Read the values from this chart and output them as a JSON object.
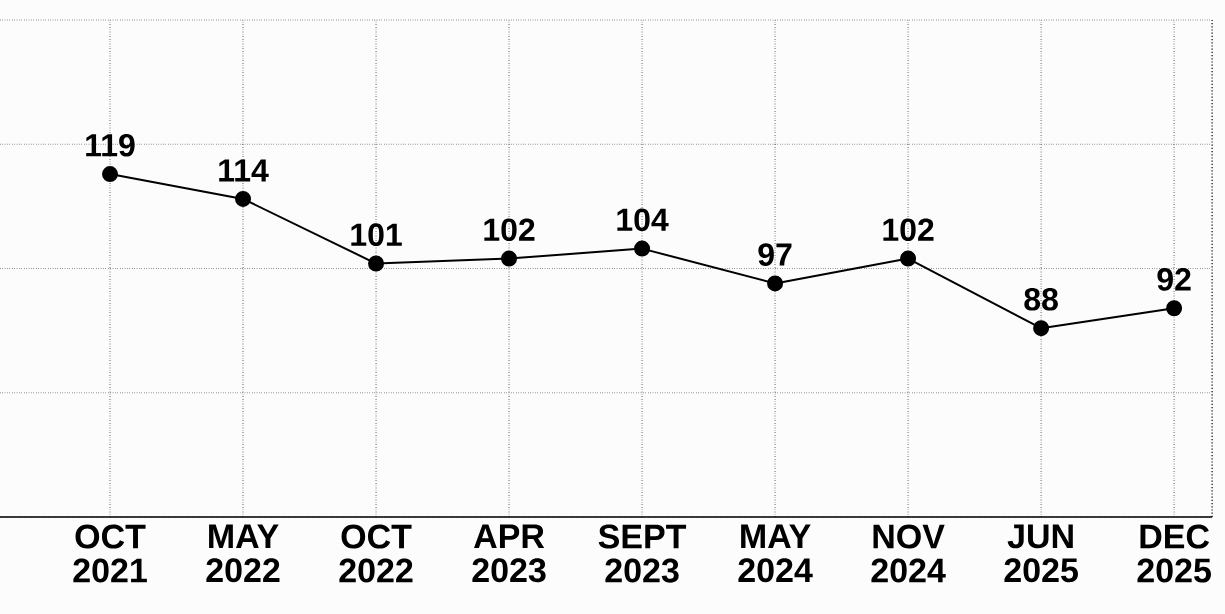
{
  "chart_data": {
    "type": "line",
    "categories": [
      "OCT 2021",
      "MAY 2022",
      "OCT 2022",
      "APR 2023",
      "SEPT 2023",
      "MAY 2024",
      "NOV 2024",
      "JUN 2025",
      "DEC 2025"
    ],
    "values": [
      119,
      114,
      101,
      102,
      104,
      97,
      102,
      88,
      92
    ],
    "color": "#000000",
    "ylim": [
      50,
      150
    ],
    "yticks": [
      {
        "value": 50,
        "label": null
      },
      {
        "value": 75,
        "label": null
      },
      {
        "value": 100,
        "label": null
      },
      {
        "value": 125,
        "label": null
      },
      {
        "value": 150,
        "label": null
      }
    ],
    "tick_labels": "x",
    "grid": true,
    "marker": "circle",
    "line_style": "solid",
    "data_labels": true
  }
}
